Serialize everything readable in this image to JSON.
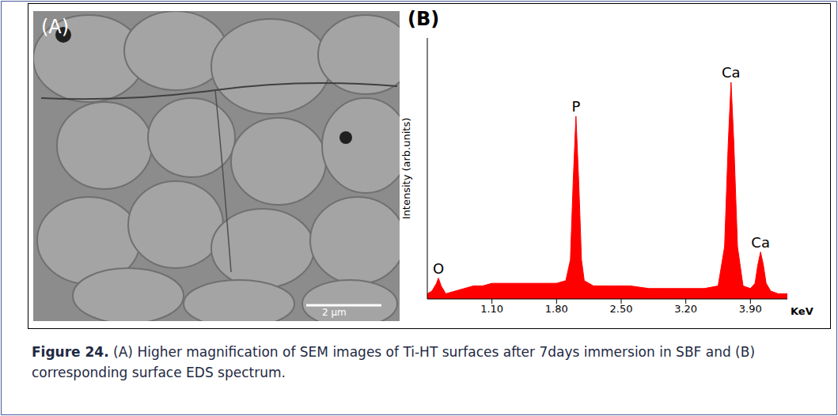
{
  "figure": {
    "caption": {
      "label": "Figure 24.",
      "text": "(A) Higher magnification of SEM images of Ti-HT surfaces after 7days immersion in SBF and (B) corresponding surface EDS spectrum."
    },
    "panel_a": {
      "label": "(A)",
      "scale_bar": "2 µm"
    }
  },
  "chart_data": {
    "type": "area",
    "title": "(B)",
    "x_label": "KeV",
    "y_label": "Intensity (arb.units)",
    "x": [
      0.4,
      0.45,
      0.5,
      0.52,
      0.55,
      0.6,
      0.7,
      0.8,
      0.9,
      1.0,
      1.1,
      1.2,
      1.3,
      1.4,
      1.5,
      1.6,
      1.7,
      1.8,
      1.9,
      1.95,
      1.98,
      2.01,
      2.04,
      2.07,
      2.1,
      2.2,
      2.4,
      2.6,
      2.8,
      3.0,
      3.2,
      3.4,
      3.55,
      3.62,
      3.66,
      3.69,
      3.72,
      3.76,
      3.82,
      3.9,
      3.95,
      3.98,
      4.01,
      4.04,
      4.07,
      4.12,
      4.2,
      4.3
    ],
    "series": [
      {
        "name": "EDS",
        "color": "#ff0000",
        "values": [
          2,
          3,
          6,
          8,
          5,
          2,
          3,
          4,
          5,
          5,
          6,
          6,
          6,
          6,
          6,
          6,
          6,
          6,
          7,
          15,
          45,
          70,
          45,
          15,
          7,
          5,
          5,
          5,
          4,
          4,
          4,
          4,
          5,
          20,
          60,
          83,
          60,
          20,
          5,
          4,
          6,
          13,
          18,
          13,
          6,
          3,
          2,
          2
        ]
      }
    ],
    "annotations": [
      {
        "text": "O",
        "x": 0.52
      },
      {
        "text": "P",
        "x": 2.01
      },
      {
        "text": "Ca",
        "x": 3.69
      },
      {
        "text": "Ca",
        "x": 4.01
      }
    ],
    "xlim": [
      0.4,
      4.3
    ],
    "xticks": [
      {
        "value": 1.1,
        "label": "1.10"
      },
      {
        "value": 1.8,
        "label": "1.80"
      },
      {
        "value": 2.5,
        "label": "2.50"
      },
      {
        "value": 3.2,
        "label": "3.20"
      },
      {
        "value": 3.9,
        "label": "3.90"
      }
    ],
    "ylim": [
      0,
      100
    ],
    "yticks": [],
    "tick_labels": "x",
    "grid": false
  }
}
